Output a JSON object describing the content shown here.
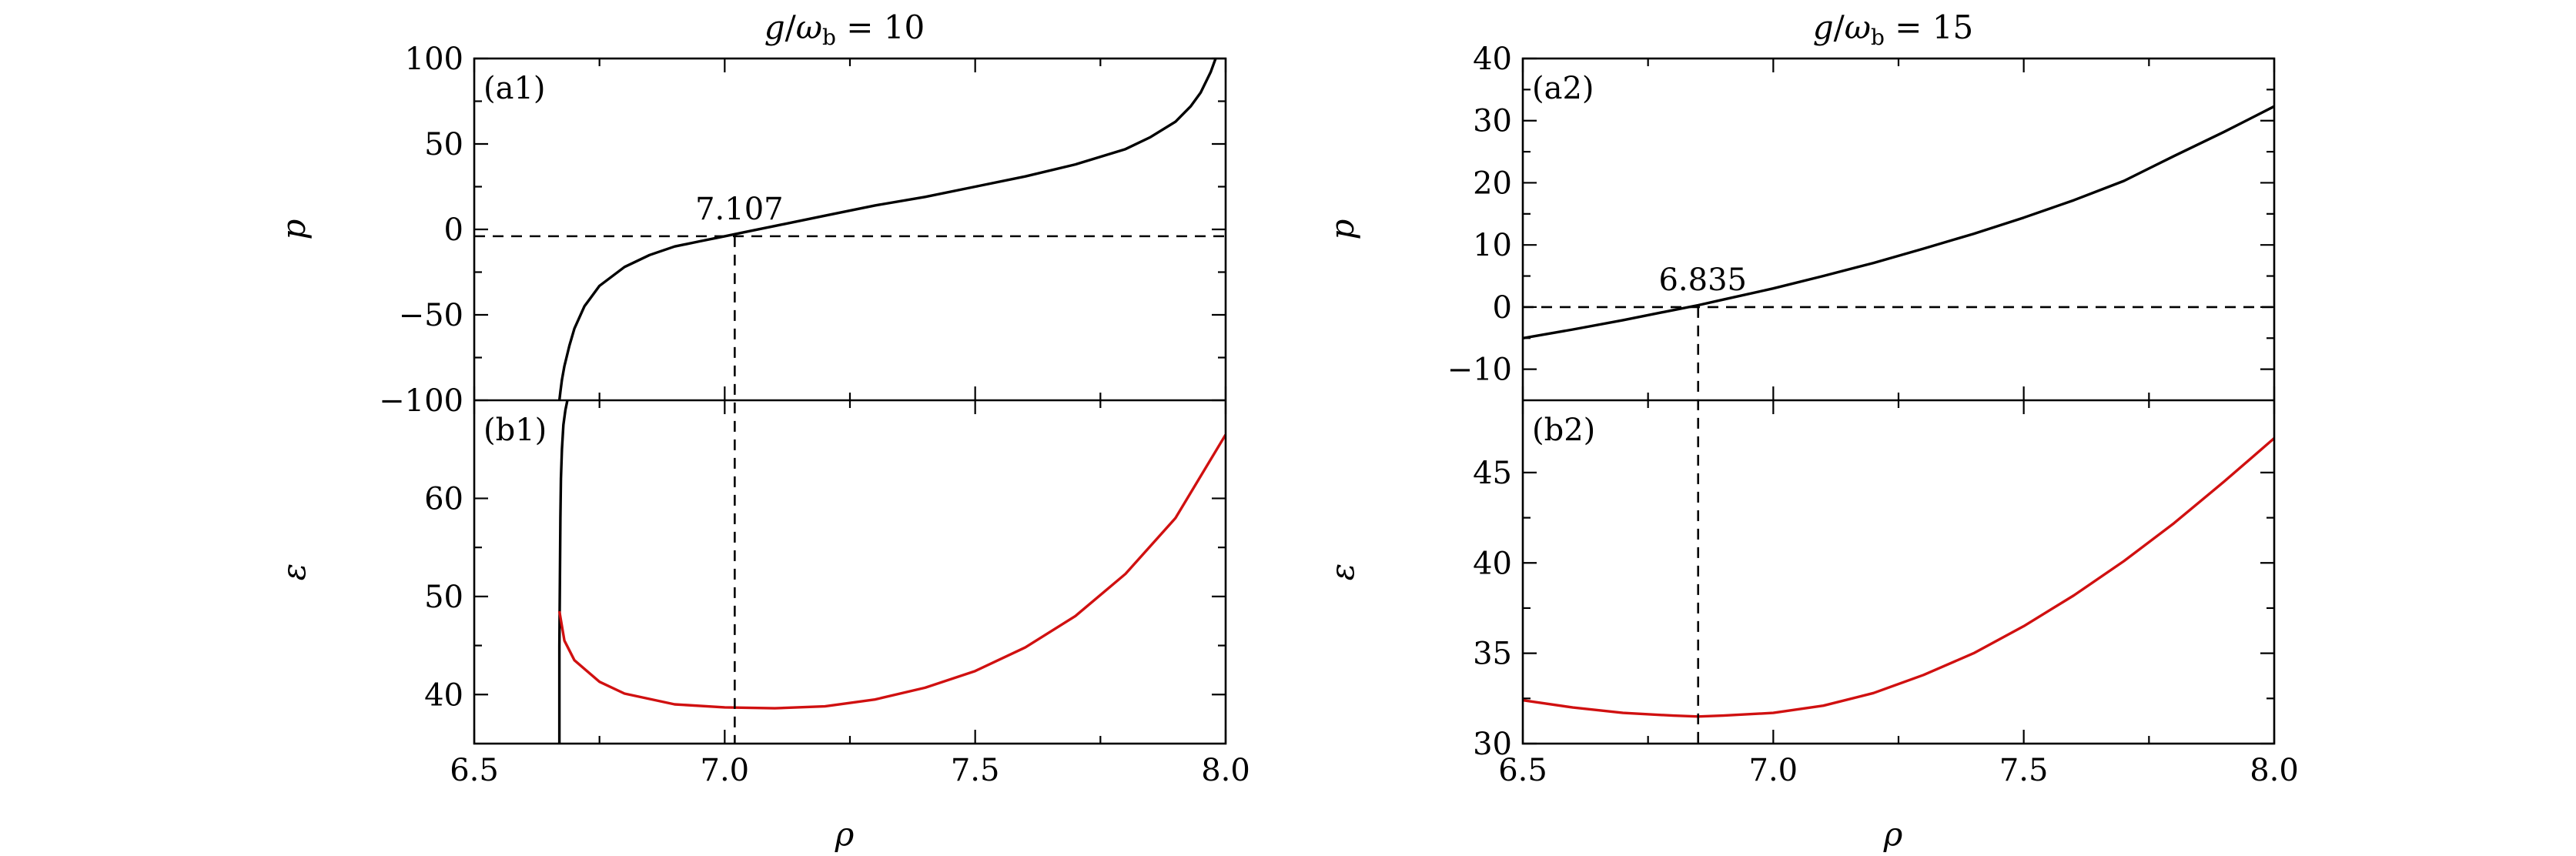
{
  "chart_data": [
    {
      "title": "g/ω_b = 10",
      "type": "line",
      "xlabel": "ρ",
      "xlim": [
        6.5,
        8.0
      ],
      "xticks": [
        "6.5",
        "7.0",
        "7.5",
        "8.0"
      ],
      "panels": [
        {
          "label": "(a1)",
          "ylabel": "p",
          "ylim": [
            -100,
            100
          ],
          "yticks": [
            "−100",
            "−50",
            "0",
            "50",
            "100"
          ],
          "hline": -4,
          "annotation": "7.107",
          "series": [
            {
              "color": "#000000",
              "x": [
                6.67,
                6.672,
                6.675,
                6.68,
                6.69,
                6.7,
                6.72,
                6.75,
                6.8,
                6.85,
                6.9,
                6.95,
                7.0,
                7.05,
                7.1,
                7.2,
                7.3,
                7.4,
                7.5,
                7.6,
                7.7,
                7.8,
                7.85,
                7.9,
                7.93,
                7.95,
                7.97,
                7.98
              ],
              "y": [
                -100,
                -95,
                -88,
                -80,
                -68,
                -58,
                -45,
                -33,
                -22,
                -15,
                -10,
                -7,
                -4,
                -1,
                2,
                8,
                14,
                19,
                25,
                31,
                38,
                47,
                54,
                63,
                72,
                80,
                92,
                100
              ]
            }
          ]
        },
        {
          "label": "(b1)",
          "ylabel": "ε",
          "ylim": [
            35,
            70
          ],
          "yticks": [
            "40",
            "50",
            "60"
          ],
          "series": [
            {
              "color": "#000000",
              "x": [
                6.67,
                6.67,
                6.671,
                6.672,
                6.673,
                6.675,
                6.678,
                6.682,
                6.686
              ],
              "y": [
                35,
                45,
                52,
                58,
                62,
                65,
                67.5,
                69,
                70
              ]
            },
            {
              "color": "#d01010",
              "x": [
                6.67,
                6.68,
                6.7,
                6.75,
                6.8,
                6.9,
                7.0,
                7.1,
                7.2,
                7.3,
                7.4,
                7.5,
                7.6,
                7.7,
                7.8,
                7.9,
                8.0
              ],
              "y": [
                48.5,
                45.5,
                43.5,
                41.3,
                40.1,
                39.0,
                38.7,
                38.6,
                38.8,
                39.5,
                40.7,
                42.4,
                44.8,
                48.0,
                52.3,
                58.0,
                66.5
              ]
            }
          ]
        }
      ],
      "vline": 7.02
    },
    {
      "title": "g/ω_b = 15",
      "type": "line",
      "xlabel": "ρ",
      "xlim": [
        6.5,
        8.0
      ],
      "xticks": [
        "6.5",
        "7.0",
        "7.5",
        "8.0"
      ],
      "panels": [
        {
          "label": "(a2)",
          "ylabel": "p",
          "ylim": [
            -15,
            40
          ],
          "yticks": [
            "−10",
            "0",
            "10",
            "20",
            "30",
            "40"
          ],
          "hline": 0,
          "annotation": "6.835",
          "series": [
            {
              "color": "#000000",
              "x": [
                6.5,
                6.6,
                6.7,
                6.8,
                6.85,
                6.9,
                7.0,
                7.1,
                7.2,
                7.3,
                7.4,
                7.5,
                7.6,
                7.7,
                7.8,
                7.9,
                8.0
              ],
              "y": [
                -5,
                -3.6,
                -2.1,
                -0.5,
                0.3,
                1.2,
                3.0,
                5.0,
                7.1,
                9.4,
                11.8,
                14.4,
                17.2,
                20.3,
                24.3,
                28.2,
                32.3
              ]
            }
          ]
        },
        {
          "label": "(b2)",
          "ylabel": "ε",
          "ylim": [
            30,
            49
          ],
          "yticks": [
            "30",
            "35",
            "40",
            "45"
          ],
          "series": [
            {
              "color": "#d01010",
              "x": [
                6.5,
                6.6,
                6.7,
                6.8,
                6.85,
                6.9,
                7.0,
                7.1,
                7.2,
                7.3,
                7.4,
                7.5,
                7.6,
                7.7,
                7.8,
                7.9,
                8.0
              ],
              "y": [
                32.4,
                32.0,
                31.7,
                31.55,
                31.5,
                31.55,
                31.7,
                32.1,
                32.8,
                33.8,
                35.0,
                36.5,
                38.2,
                40.1,
                42.2,
                44.5,
                46.9
              ]
            }
          ]
        }
      ],
      "vline": 6.85
    }
  ]
}
